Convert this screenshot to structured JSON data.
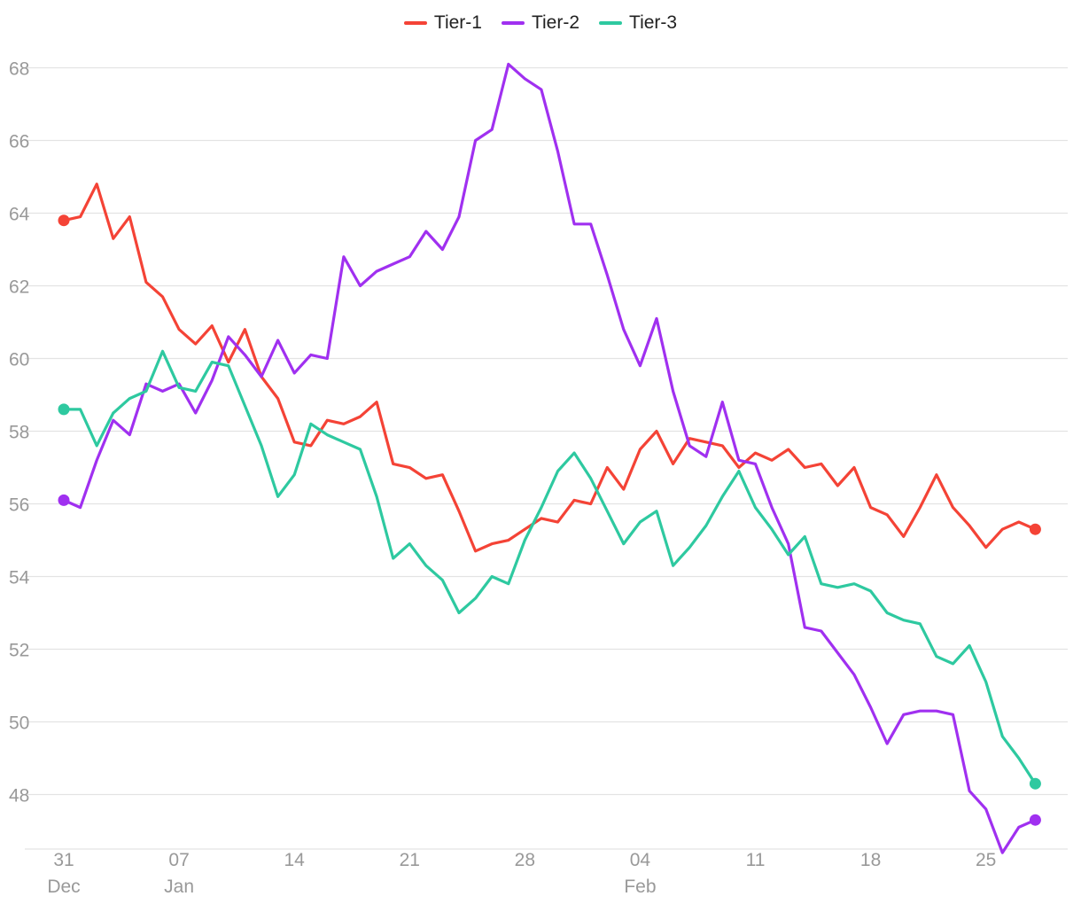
{
  "chart_data": {
    "type": "line",
    "title": "",
    "xlabel": "",
    "ylabel": "",
    "ylim": [
      46.5,
      68.5
    ],
    "yticks": [
      48,
      50,
      52,
      54,
      56,
      58,
      60,
      62,
      64,
      66,
      68
    ],
    "xlim": [
      0,
      60
    ],
    "xticks": [
      {
        "x": 0,
        "day": "31",
        "month": "Dec"
      },
      {
        "x": 7,
        "day": "07",
        "month": "Jan"
      },
      {
        "x": 14,
        "day": "14",
        "month": ""
      },
      {
        "x": 21,
        "day": "21",
        "month": ""
      },
      {
        "x": 28,
        "day": "28",
        "month": ""
      },
      {
        "x": 35,
        "day": "04",
        "month": "Feb"
      },
      {
        "x": 42,
        "day": "11",
        "month": ""
      },
      {
        "x": 49,
        "day": "18",
        "month": ""
      },
      {
        "x": 56,
        "day": "25",
        "month": ""
      }
    ],
    "x_unit": "days since 31 Dec",
    "series": [
      {
        "name": "Tier-1",
        "color": "#f44336",
        "values": [
          63.8,
          63.9,
          64.8,
          63.3,
          63.9,
          62.1,
          61.7,
          60.8,
          60.4,
          60.9,
          59.9,
          60.8,
          59.5,
          58.9,
          57.7,
          57.6,
          58.3,
          58.2,
          58.4,
          58.8,
          57.1,
          57.0,
          56.7,
          56.8,
          55.8,
          54.7,
          54.9,
          55.0,
          55.3,
          55.6,
          55.5,
          56.1,
          56.0,
          57.0,
          56.4,
          57.5,
          58.0,
          57.1,
          57.8,
          57.7,
          57.6,
          57.0,
          57.4,
          57.2,
          57.5,
          57.0,
          57.1,
          56.5,
          57.0,
          55.9,
          55.7,
          55.1,
          55.9,
          56.8,
          55.9,
          55.4,
          54.8,
          55.3,
          55.5,
          55.3
        ]
      },
      {
        "name": "Tier-2",
        "color": "#a030f0",
        "values": [
          56.1,
          55.9,
          57.2,
          58.3,
          57.9,
          59.3,
          59.1,
          59.3,
          58.5,
          59.4,
          60.6,
          60.1,
          59.5,
          60.5,
          59.6,
          60.1,
          60.0,
          62.8,
          62.0,
          62.4,
          62.6,
          62.8,
          63.5,
          63.0,
          63.9,
          66.0,
          66.3,
          68.1,
          67.7,
          67.4,
          65.7,
          63.7,
          63.7,
          62.3,
          60.8,
          59.8,
          61.1,
          59.1,
          57.6,
          57.3,
          58.8,
          57.2,
          57.1,
          55.9,
          54.9,
          52.6,
          52.5,
          51.9,
          51.3,
          50.4,
          49.4,
          50.2,
          50.3,
          50.3,
          50.2,
          48.1,
          47.6,
          46.4,
          47.1,
          47.3
        ]
      },
      {
        "name": "Tier-3",
        "color": "#2ec9a0",
        "values": [
          58.6,
          58.6,
          57.6,
          58.5,
          58.9,
          59.1,
          60.2,
          59.2,
          59.1,
          59.9,
          59.8,
          58.7,
          57.6,
          56.2,
          56.8,
          58.2,
          57.9,
          57.7,
          57.5,
          56.2,
          54.5,
          54.9,
          54.3,
          53.9,
          53.0,
          53.4,
          54.0,
          53.8,
          55.0,
          55.9,
          56.9,
          57.4,
          56.7,
          55.8,
          54.9,
          55.5,
          55.8,
          54.3,
          54.8,
          55.4,
          56.2,
          56.9,
          55.9,
          55.3,
          54.6,
          55.1,
          53.8,
          53.7,
          53.8,
          53.6,
          53.0,
          52.8,
          52.7,
          51.8,
          51.6,
          52.1,
          51.1,
          49.6,
          49.0,
          48.3
        ]
      }
    ],
    "endpoint_markers": true,
    "grid": true,
    "legend": "top-center"
  }
}
